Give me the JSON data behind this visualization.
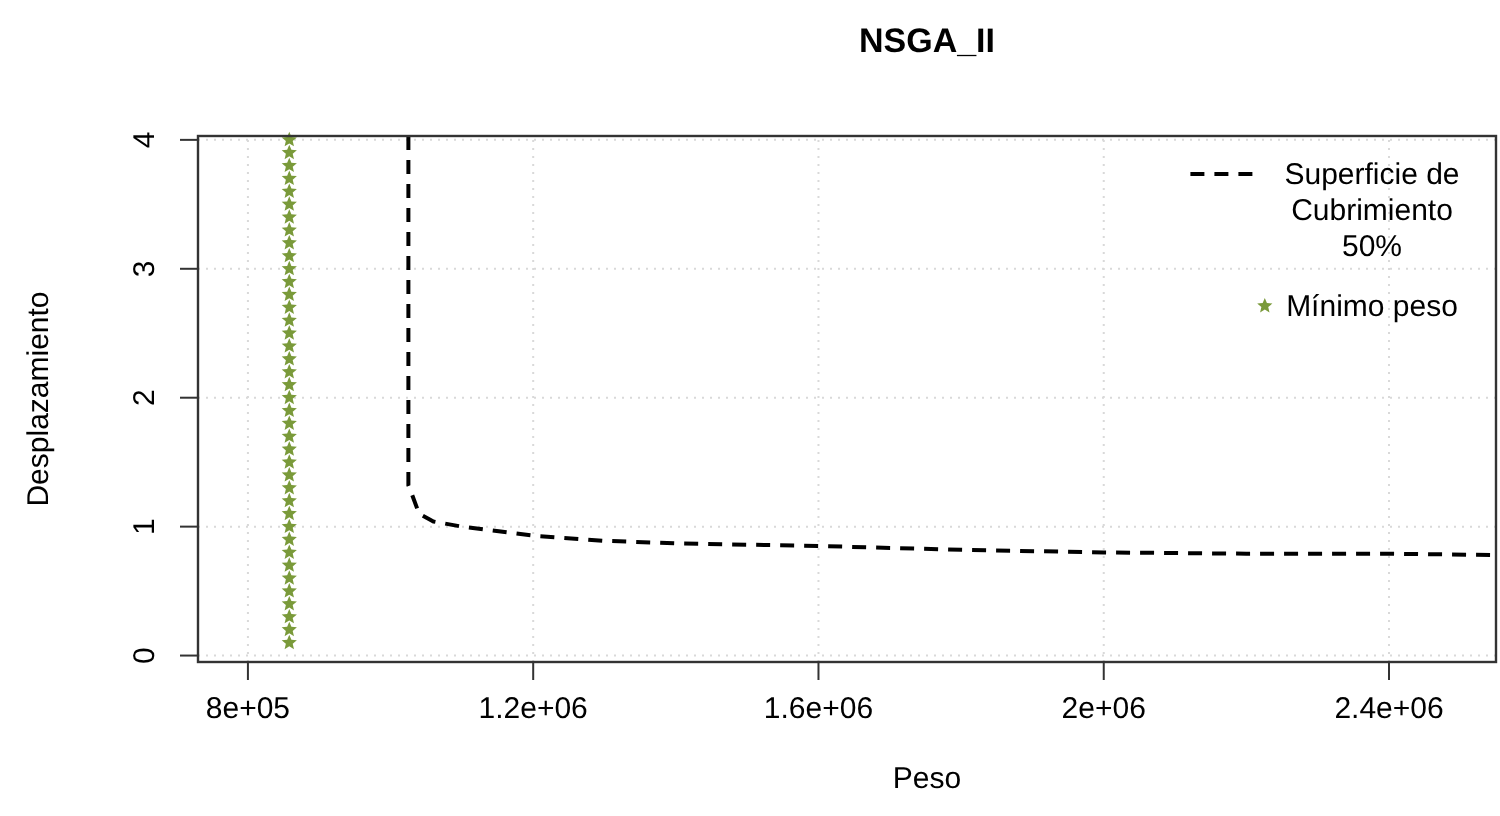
{
  "chart_data": {
    "type": "line",
    "title": "NSGA_II",
    "xlabel": "Peso",
    "ylabel": "Desplazamiento",
    "xlim": [
      730000,
      2550000
    ],
    "ylim": [
      -0.05,
      4.03
    ],
    "xticks": [
      {
        "value": 800000,
        "label": "8e+05"
      },
      {
        "value": 1200000,
        "label": "1.2e+06"
      },
      {
        "value": 1600000,
        "label": "1.6e+06"
      },
      {
        "value": 2000000,
        "label": "2e+06"
      },
      {
        "value": 2400000,
        "label": "2.4e+06"
      }
    ],
    "yticks": [
      0,
      1,
      2,
      3,
      4
    ],
    "grid": true,
    "legend": "top right",
    "series": [
      {
        "name": "Superficie de\nCubrimiento\n50%",
        "line_style": "dashed",
        "marker": "none",
        "color": "#000000",
        "x": [
          1025000,
          1025000,
          1030000,
          1040000,
          1060000,
          1100000,
          1200000,
          1300000,
          1400000,
          1600000,
          1800000,
          2000000,
          2200000,
          2400000,
          2550000
        ],
        "values": [
          4.03,
          1.32,
          1.25,
          1.1,
          1.04,
          1.0,
          0.93,
          0.89,
          0.87,
          0.85,
          0.82,
          0.8,
          0.79,
          0.79,
          0.78
        ]
      },
      {
        "name": "Mínimo peso",
        "type": "scatter",
        "marker": "star",
        "color": "#7a9a3a",
        "x": [
          858000,
          858000,
          858000,
          858000,
          858000,
          858000,
          858000,
          858000,
          858000,
          858000,
          858000,
          858000,
          858000,
          858000,
          858000,
          858000,
          858000,
          858000,
          858000,
          858000,
          858000,
          858000,
          858000,
          858000,
          858000,
          858000,
          858000,
          858000,
          858000,
          858000,
          858000,
          858000,
          858000,
          858000,
          858000,
          858000,
          858000,
          858000,
          858000,
          858000
        ],
        "values": [
          0.1,
          0.2,
          0.3,
          0.4,
          0.5,
          0.6,
          0.7,
          0.8,
          0.9,
          1.0,
          1.1,
          1.2,
          1.3,
          1.4,
          1.5,
          1.6,
          1.7,
          1.8,
          1.9,
          2.0,
          2.1,
          2.2,
          2.3,
          2.4,
          2.5,
          2.6,
          2.7,
          2.8,
          2.9,
          3.0,
          3.1,
          3.2,
          3.3,
          3.4,
          3.5,
          3.6,
          3.7,
          3.8,
          3.9,
          4.0
        ]
      }
    ]
  }
}
